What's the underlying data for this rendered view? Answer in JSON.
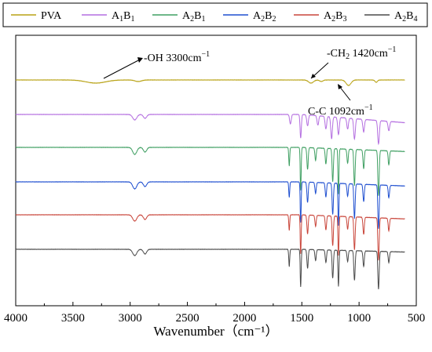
{
  "chart_data": {
    "type": "line",
    "xlabel": "Wavenumber（cm⁻¹）",
    "xlim": [
      4000,
      500
    ],
    "xticks": [
      "4000",
      "3500",
      "3000",
      "2500",
      "2000",
      "1500",
      "1000",
      "500"
    ],
    "y_axis_visible": false,
    "grid": false,
    "legend_position": "top",
    "legend": [
      {
        "name": "PVA",
        "base": "PVA",
        "sub": "",
        "base2": "",
        "sub2": "",
        "color": "#b8a214"
      },
      {
        "name": "A1B1",
        "base": "A",
        "sub": "1",
        "base2": "B",
        "sub2": "1",
        "color": "#b46ee0"
      },
      {
        "name": "A2B1",
        "base": "A",
        "sub": "2",
        "base2": "B",
        "sub2": "1",
        "color": "#3f9f62"
      },
      {
        "name": "A2B2",
        "base": "A",
        "sub": "2",
        "base2": "B",
        "sub2": "2",
        "color": "#1f4fd0"
      },
      {
        "name": "A2B3",
        "base": "A",
        "sub": "2",
        "base2": "B",
        "sub2": "3",
        "color": "#c9453a"
      },
      {
        "name": "A2B4",
        "base": "A",
        "sub": "2",
        "base2": "B",
        "sub2": "4",
        "color": "#4a4a4a"
      }
    ],
    "series": [
      {
        "color": "#b8a214",
        "baseline_y": 102,
        "x_range": [
          4000,
          600
        ],
        "peaks": [
          {
            "x": 3300,
            "d": 4,
            "w": 120
          },
          {
            "x": 2930,
            "d": 2,
            "w": 40
          },
          {
            "x": 1420,
            "d": 4,
            "w": 30
          },
          {
            "x": 1330,
            "d": 2,
            "w": 20
          },
          {
            "x": 1092,
            "d": 7,
            "w": 30
          },
          {
            "x": 850,
            "d": 3,
            "w": 15
          }
        ]
      },
      {
        "color": "#b46ee0",
        "baseline_y": 146,
        "x_range": [
          4000,
          600
        ],
        "drift": 30,
        "peaks": [
          {
            "x": 2960,
            "d": 7,
            "w": 25
          },
          {
            "x": 2870,
            "d": 5,
            "w": 20
          },
          {
            "x": 1600,
            "d": 12,
            "w": 10
          },
          {
            "x": 1510,
            "d": 30,
            "w": 8
          },
          {
            "x": 1450,
            "d": 14,
            "w": 10
          },
          {
            "x": 1360,
            "d": 12,
            "w": 10
          },
          {
            "x": 1290,
            "d": 16,
            "w": 10
          },
          {
            "x": 1240,
            "d": 28,
            "w": 10
          },
          {
            "x": 1180,
            "d": 22,
            "w": 10
          },
          {
            "x": 1100,
            "d": 14,
            "w": 10
          },
          {
            "x": 1040,
            "d": 26,
            "w": 10
          },
          {
            "x": 960,
            "d": 16,
            "w": 10
          },
          {
            "x": 830,
            "d": 30,
            "w": 10
          },
          {
            "x": 740,
            "d": 12,
            "w": 10
          }
        ]
      },
      {
        "color": "#3f9f62",
        "baseline_y": 188,
        "x_range": [
          4000,
          600
        ],
        "drift": 15,
        "peaks": [
          {
            "x": 2960,
            "d": 9,
            "w": 25
          },
          {
            "x": 2870,
            "d": 6,
            "w": 20
          },
          {
            "x": 1610,
            "d": 24,
            "w": 6
          },
          {
            "x": 1510,
            "d": 55,
            "w": 6
          },
          {
            "x": 1450,
            "d": 28,
            "w": 8
          },
          {
            "x": 1380,
            "d": 16,
            "w": 8
          },
          {
            "x": 1290,
            "d": 20,
            "w": 8
          },
          {
            "x": 1230,
            "d": 42,
            "w": 8
          },
          {
            "x": 1180,
            "d": 58,
            "w": 6
          },
          {
            "x": 1100,
            "d": 18,
            "w": 8
          },
          {
            "x": 1040,
            "d": 46,
            "w": 8
          },
          {
            "x": 960,
            "d": 24,
            "w": 8
          },
          {
            "x": 830,
            "d": 58,
            "w": 8
          },
          {
            "x": 740,
            "d": 18,
            "w": 8
          }
        ]
      },
      {
        "color": "#1f4fd0",
        "baseline_y": 232,
        "x_range": [
          4000,
          600
        ],
        "drift": 15,
        "peaks": [
          {
            "x": 2960,
            "d": 9,
            "w": 25
          },
          {
            "x": 2870,
            "d": 6,
            "w": 20
          },
          {
            "x": 1610,
            "d": 20,
            "w": 6
          },
          {
            "x": 1510,
            "d": 52,
            "w": 6
          },
          {
            "x": 1450,
            "d": 26,
            "w": 8
          },
          {
            "x": 1380,
            "d": 14,
            "w": 8
          },
          {
            "x": 1290,
            "d": 18,
            "w": 8
          },
          {
            "x": 1230,
            "d": 40,
            "w": 8
          },
          {
            "x": 1180,
            "d": 54,
            "w": 6
          },
          {
            "x": 1100,
            "d": 16,
            "w": 8
          },
          {
            "x": 1040,
            "d": 44,
            "w": 8
          },
          {
            "x": 960,
            "d": 22,
            "w": 8
          },
          {
            "x": 830,
            "d": 56,
            "w": 8
          },
          {
            "x": 740,
            "d": 16,
            "w": 8
          }
        ]
      },
      {
        "color": "#c9453a",
        "baseline_y": 274,
        "x_range": [
          4000,
          600
        ],
        "drift": 15,
        "peaks": [
          {
            "x": 2960,
            "d": 8,
            "w": 25
          },
          {
            "x": 2870,
            "d": 6,
            "w": 20
          },
          {
            "x": 1610,
            "d": 20,
            "w": 6
          },
          {
            "x": 1510,
            "d": 50,
            "w": 6
          },
          {
            "x": 1450,
            "d": 24,
            "w": 8
          },
          {
            "x": 1380,
            "d": 14,
            "w": 8
          },
          {
            "x": 1290,
            "d": 18,
            "w": 8
          },
          {
            "x": 1230,
            "d": 38,
            "w": 8
          },
          {
            "x": 1180,
            "d": 50,
            "w": 6
          },
          {
            "x": 1100,
            "d": 16,
            "w": 8
          },
          {
            "x": 1040,
            "d": 42,
            "w": 8
          },
          {
            "x": 960,
            "d": 22,
            "w": 8
          },
          {
            "x": 830,
            "d": 54,
            "w": 8
          },
          {
            "x": 740,
            "d": 16,
            "w": 8
          }
        ]
      },
      {
        "color": "#4a4a4a",
        "baseline_y": 318,
        "x_range": [
          4000,
          600
        ],
        "drift": 10,
        "peaks": [
          {
            "x": 2960,
            "d": 8,
            "w": 25
          },
          {
            "x": 2870,
            "d": 6,
            "w": 20
          },
          {
            "x": 1610,
            "d": 22,
            "w": 6
          },
          {
            "x": 1510,
            "d": 48,
            "w": 6
          },
          {
            "x": 1450,
            "d": 24,
            "w": 8
          },
          {
            "x": 1380,
            "d": 14,
            "w": 8
          },
          {
            "x": 1290,
            "d": 16,
            "w": 8
          },
          {
            "x": 1230,
            "d": 36,
            "w": 8
          },
          {
            "x": 1180,
            "d": 46,
            "w": 6
          },
          {
            "x": 1100,
            "d": 14,
            "w": 8
          },
          {
            "x": 1040,
            "d": 38,
            "w": 8
          },
          {
            "x": 960,
            "d": 20,
            "w": 8
          },
          {
            "x": 830,
            "d": 48,
            "w": 8
          },
          {
            "x": 740,
            "d": 14,
            "w": 8
          }
        ]
      }
    ],
    "annotations": [
      {
        "text": "-OH 3300cm",
        "sup": "−1",
        "x_from": 3300,
        "target_series": 0
      },
      {
        "text": "-CH",
        "sub": "2",
        "text2": " 1420cm",
        "sup": "−1",
        "x_from": 1420,
        "target_series": 0
      },
      {
        "text": "C-C 1092cm",
        "sup": "−1",
        "x_from": 1092,
        "target_series": 0
      }
    ]
  }
}
